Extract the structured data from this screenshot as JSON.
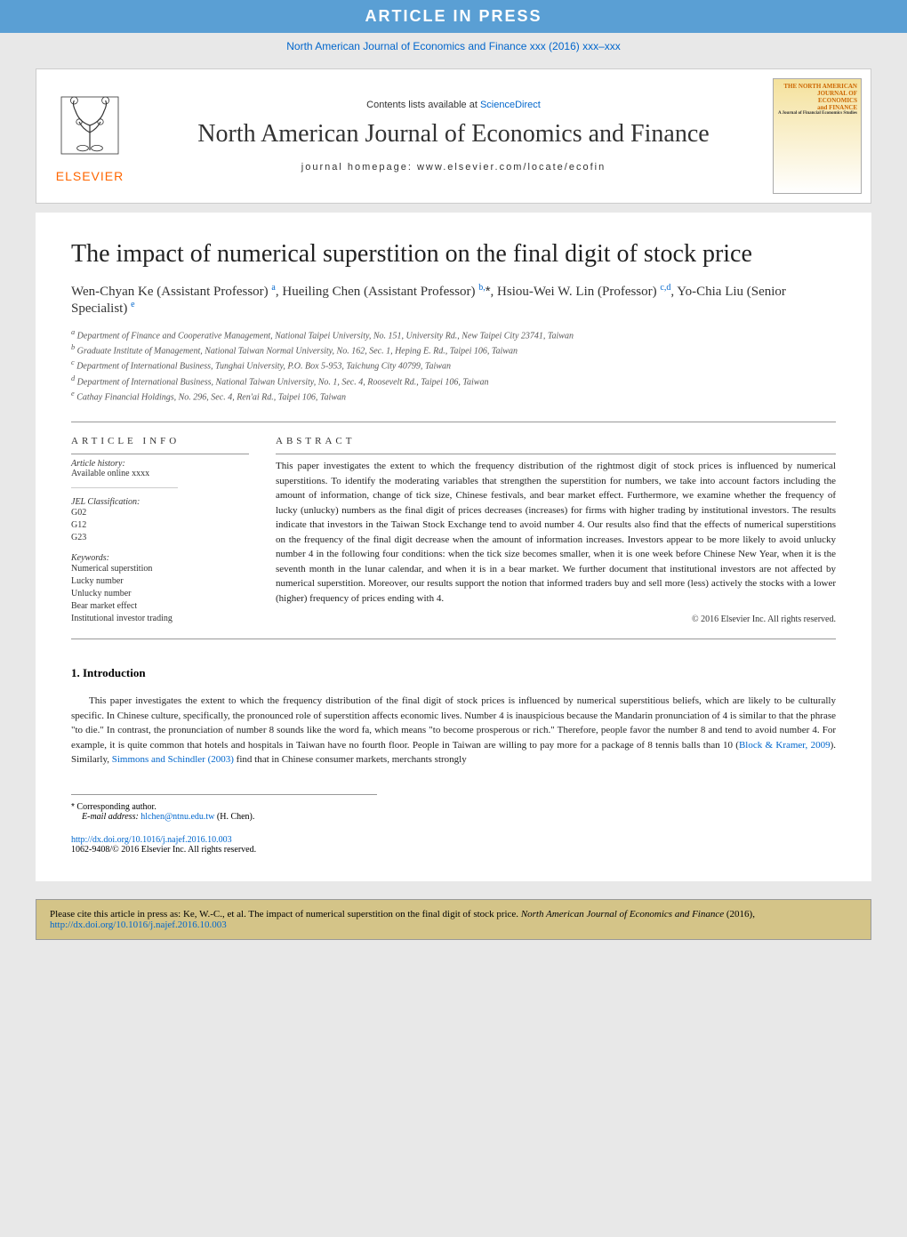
{
  "banner": {
    "article_in_press": "ARTICLE IN PRESS",
    "journal_ref": "North American Journal of Economics and Finance xxx (2016) xxx–xxx"
  },
  "header": {
    "contents_text": "Contents lists available at ",
    "contents_link": "ScienceDirect",
    "journal_name": "North American Journal of Economics and Finance",
    "homepage_label": "journal homepage: ",
    "homepage_url": "www.elsevier.com/locate/ecofin",
    "elsevier_label": "ELSEVIER",
    "cover_line1": "THE NORTH AMERICAN",
    "cover_line2": "JOURNAL OF",
    "cover_line3": "ECONOMICS",
    "cover_line4": "and FINANCE",
    "cover_line5": "A Journal of Financial Economics Studies"
  },
  "article": {
    "title": "The impact of numerical superstition on the final digit of stock price",
    "authors_html": "Wen-Chyan Ke (Assistant Professor) <sup>a</sup>, Hueiling Chen (Assistant Professor) <sup>b,</sup><span class='star'>*</span>, Hsiou-Wei W. Lin (Professor) <sup>c,d</sup>, Yo-Chia Liu (Senior Specialist) <sup>e</sup>",
    "affiliations": {
      "a": "Department of Finance and Cooperative Management, National Taipei University, No. 151, University Rd., New Taipei City 23741, Taiwan",
      "b": "Graduate Institute of Management, National Taiwan Normal University, No. 162, Sec. 1, Heping E. Rd., Taipei 106, Taiwan",
      "c": "Department of International Business, Tunghai University, P.O. Box 5-953, Taichung City 40799, Taiwan",
      "d": "Department of International Business, National Taiwan University, No. 1, Sec. 4, Roosevelt Rd., Taipei 106, Taiwan",
      "e": "Cathay Financial Holdings, No. 296, Sec. 4, Ren'ai Rd., Taipei 106, Taiwan"
    }
  },
  "info": {
    "section_label": "ARTICLE INFO",
    "history_label": "Article history:",
    "history_value": "Available online xxxx",
    "jel_label": "JEL Classification:",
    "jel_codes": [
      "G02",
      "G12",
      "G23"
    ],
    "keywords_label": "Keywords:",
    "keywords": [
      "Numerical superstition",
      "Lucky number",
      "Unlucky number",
      "Bear market effect",
      "Institutional investor trading"
    ]
  },
  "abstract": {
    "label": "ABSTRACT",
    "text": "This paper investigates the extent to which the frequency distribution of the rightmost digit of stock prices is influenced by numerical superstitions. To identify the moderating variables that strengthen the superstition for numbers, we take into account factors including the amount of information, change of tick size, Chinese festivals, and bear market effect. Furthermore, we examine whether the frequency of lucky (unlucky) numbers as the final digit of prices decreases (increases) for firms with higher trading by institutional investors. The results indicate that investors in the Taiwan Stock Exchange tend to avoid number 4. Our results also find that the effects of numerical superstitions on the frequency of the final digit decrease when the amount of information increases. Investors appear to be more likely to avoid unlucky number 4 in the following four conditions: when the tick size becomes smaller, when it is one week before Chinese New Year, when it is the seventh month in the lunar calendar, and when it is in a bear market. We further document that institutional investors are not affected by numerical superstition. Moreover, our results support the notion that informed traders buy and sell more (less) actively the stocks with a lower (higher) frequency of prices ending with 4.",
    "copyright": "© 2016 Elsevier Inc. All rights reserved."
  },
  "intro": {
    "header": "1. Introduction",
    "text_pre": "This paper investigates the extent to which the frequency distribution of the final digit of stock prices is influenced by numerical superstitious beliefs, which are likely to be culturally specific. In Chinese culture, specifically, the pronounced role of superstition affects economic lives. Number 4 is inauspicious because the Mandarin pronunciation of 4 is similar to that the phrase \"to die.\" In contrast, the pronunciation of number 8 sounds like the word fa, which means \"to become prosperous or rich.\" Therefore, people favor the number 8 and tend to avoid number 4. For example, it is quite common that hotels and hospitals in Taiwan have no fourth floor. People in Taiwan are willing to pay more for a package of 8 tennis balls than 10 (",
    "ref1": "Block & Kramer, 2009",
    "text_mid": "). Similarly, ",
    "ref2": "Simmons and Schindler (2003)",
    "text_post": " find that in Chinese consumer markets, merchants strongly"
  },
  "footnote": {
    "corresponding": "Corresponding author.",
    "email_label": "E-mail address: ",
    "email": "hlchen@ntnu.edu.tw",
    "email_suffix": " (H. Chen)."
  },
  "doi": {
    "url": "http://dx.doi.org/10.1016/j.najef.2016.10.003",
    "issn": "1062-9408/© 2016 Elsevier Inc. All rights reserved."
  },
  "cite": {
    "prefix": "Please cite this article in press as: Ke, W.-C., et al. The impact of numerical superstition on the final digit of stock price. ",
    "journal": "North American Journal of Economics and Finance",
    "year": " (2016), ",
    "url": "http://dx.doi.org/10.1016/j.najef.2016.10.003"
  },
  "colors": {
    "link": "#0066cc",
    "banner_bg": "#5a9fd4",
    "elsevier_orange": "#ff6600",
    "cite_bg": "#d4c488"
  }
}
